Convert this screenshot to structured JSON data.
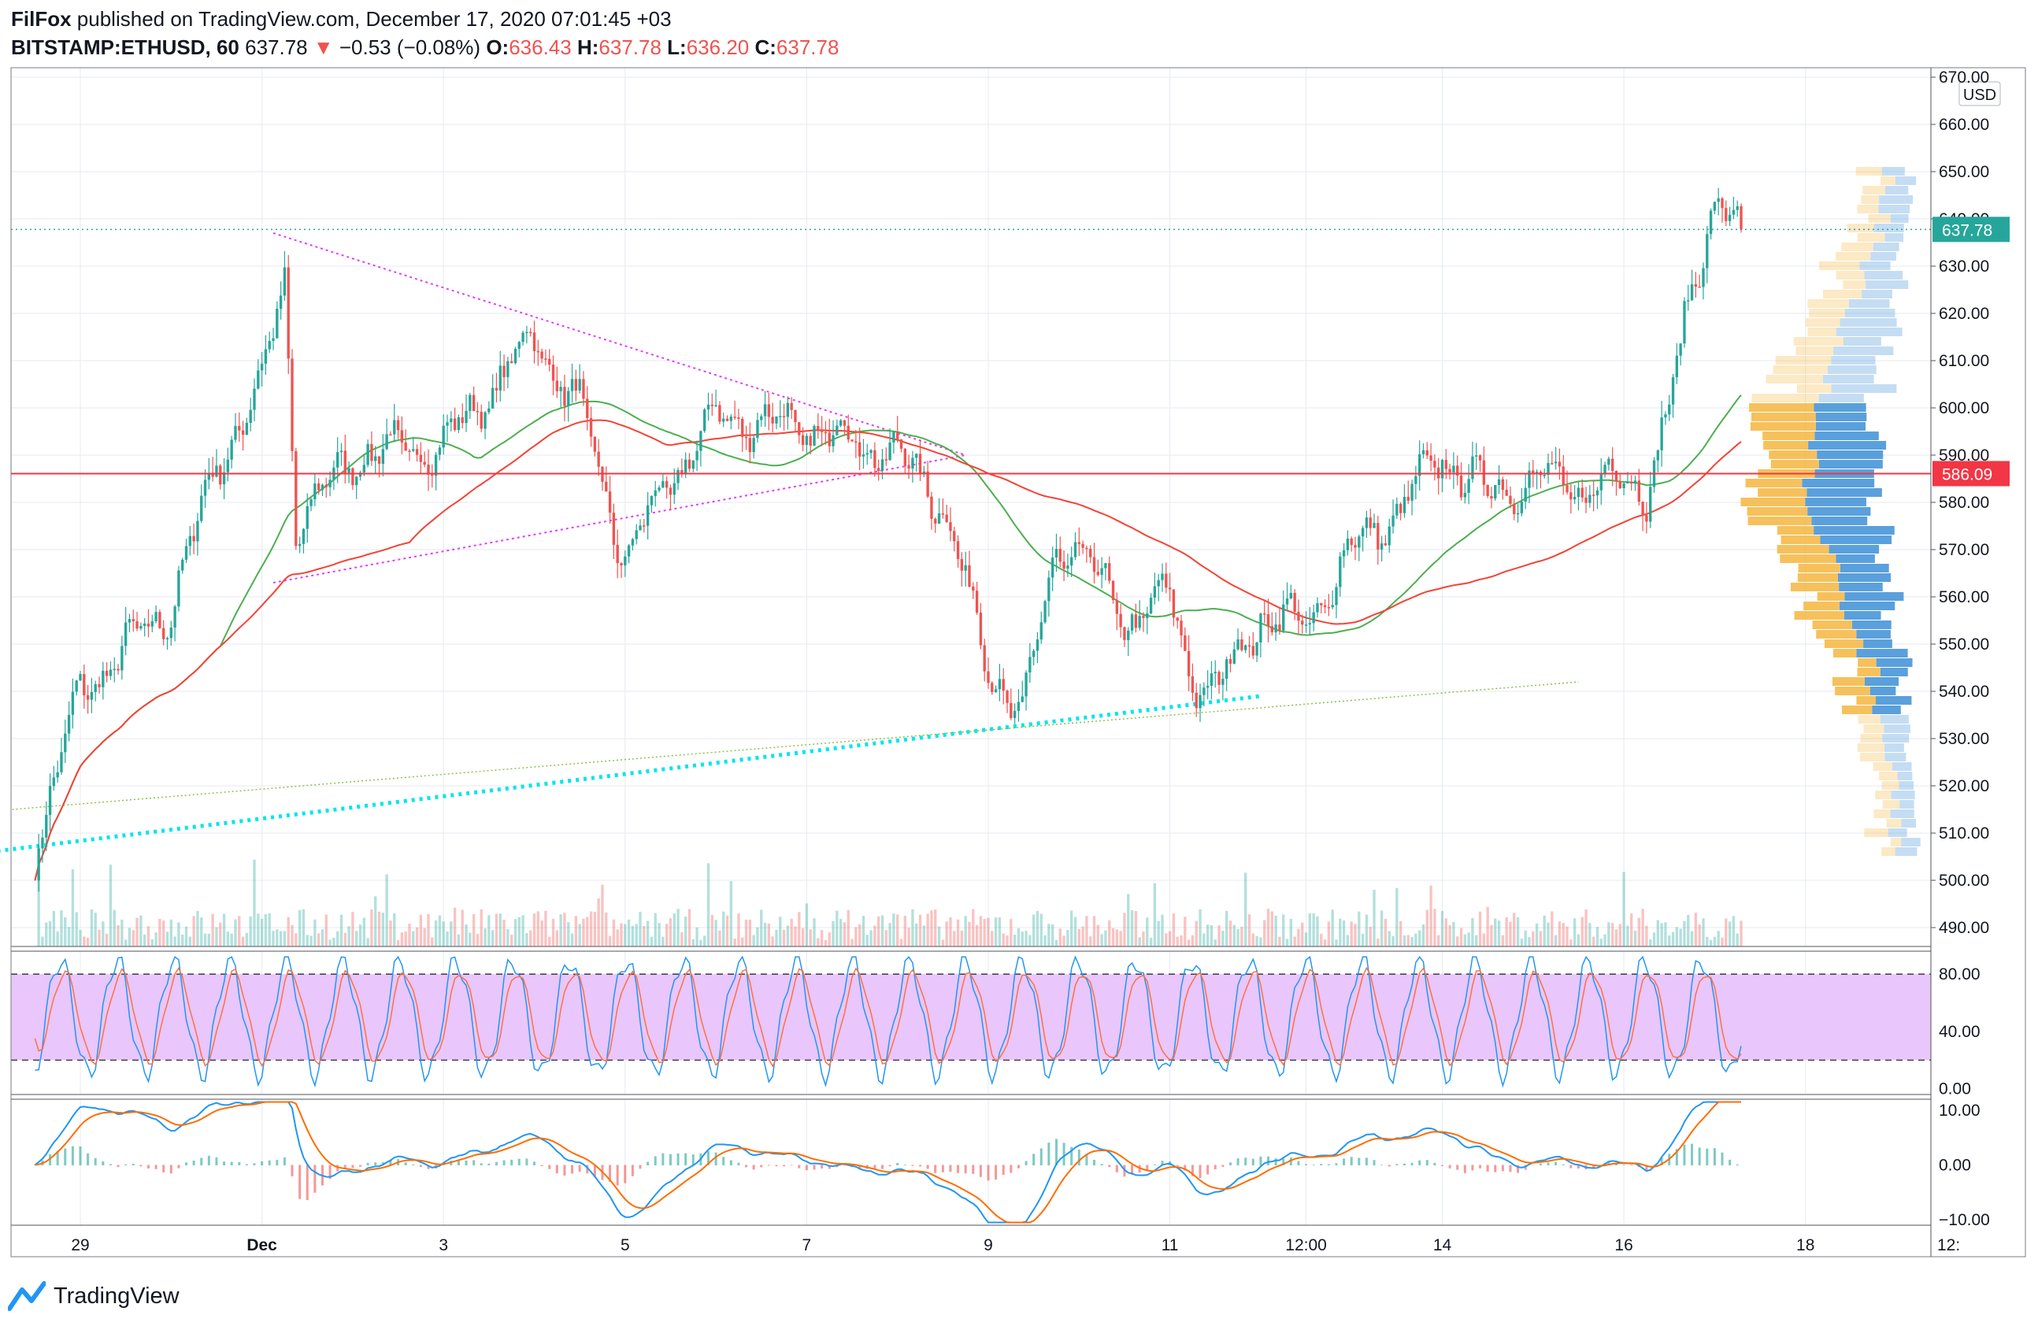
{
  "header": {
    "author": "FilFox",
    "published": "published on TradingView.com, December 17, 2020 07:01:45 +03",
    "symbol": "BITSTAMP:ETHUSD, 60",
    "last": "637.78",
    "change_arrow": "▼",
    "change": "−0.53 (−0.08%)",
    "open_label": "O:",
    "open": "636.43",
    "high_label": "H:",
    "high": "637.78",
    "low_label": "L:",
    "low": "636.20",
    "close_label": "C:",
    "close": "637.78"
  },
  "branding": {
    "logo_text": "TradingView",
    "logo_icon": "tradingview-logo-icon"
  },
  "price_axis": {
    "currency": "USD",
    "ticks": [
      "670.00",
      "660.00",
      "650.00",
      "640.00",
      "630.00",
      "620.00",
      "610.00",
      "600.00",
      "590.00",
      "580.00",
      "570.00",
      "560.00",
      "550.00",
      "540.00",
      "530.00",
      "520.00",
      "510.00",
      "500.00",
      "490.00"
    ],
    "last_price_label": "637.78",
    "horizontal_line_label": "586.09"
  },
  "time_axis": {
    "ticks": [
      "29",
      "Dec",
      "3",
      "5",
      "7",
      "9",
      "11",
      "12:00",
      "14",
      "16",
      "18",
      "12:"
    ]
  },
  "stoch_axis": {
    "ticks": [
      "80.00",
      "40.00",
      "0.00"
    ]
  },
  "macd_axis": {
    "ticks": [
      "10.00",
      "0.00",
      "−10.00"
    ]
  },
  "colors": {
    "up": "#26a69a",
    "down": "#ef5350",
    "ma_long": "#4caf50",
    "ma_short": "#f44336",
    "triangle": "#e040fb",
    "trend_cyan": "#00e5ee",
    "trend_green": "#8bc34a",
    "stoch_band": "#e9c6fb",
    "stoch_k": "#2196f3",
    "stoch_d": "#ff7043",
    "macd_line": "#2196f3",
    "signal_line": "#ff6d00",
    "vp_up": "#f5b640",
    "vp_down": "#3d8fd6",
    "hline": "#f23645"
  },
  "chart_data": [
    {
      "type": "candlestick",
      "symbol": "BITSTAMP:ETHUSD",
      "interval": "60",
      "ylim": [
        486,
        672
      ],
      "x_labels": [
        "29",
        "Dec",
        "3",
        "5",
        "7",
        "9",
        "11",
        "12:00",
        "14",
        "16",
        "18"
      ],
      "anchor_closes": [
        {
          "x": "Nov 28 12:00",
          "close": 507
        },
        {
          "x": "Nov 29",
          "close": 540
        },
        {
          "x": "Nov 30",
          "close": 558
        },
        {
          "x": "Nov 30 12:00",
          "close": 588
        },
        {
          "x": "Dec 1",
          "close": 605
        },
        {
          "x": "Dec 1 06:00",
          "close": 628
        },
        {
          "x": "Dec 1 09:00",
          "close": 575
        },
        {
          "x": "Dec 2",
          "close": 590
        },
        {
          "x": "Dec 3",
          "close": 592
        },
        {
          "x": "Dec 4",
          "close": 615
        },
        {
          "x": "Dec 4 12:00",
          "close": 600
        },
        {
          "x": "Dec 5",
          "close": 568
        },
        {
          "x": "Dec 5 12:00",
          "close": 585
        },
        {
          "x": "Dec 6",
          "close": 598
        },
        {
          "x": "Dec 7",
          "close": 596
        },
        {
          "x": "Dec 8",
          "close": 590
        },
        {
          "x": "Dec 8 12:00",
          "close": 580
        },
        {
          "x": "Dec 9",
          "close": 545
        },
        {
          "x": "Dec 9 09:00",
          "close": 535
        },
        {
          "x": "Dec 9 18:00",
          "close": 570
        },
        {
          "x": "Dec 10",
          "close": 570
        },
        {
          "x": "Dec 10 12:00",
          "close": 555
        },
        {
          "x": "Dec 11",
          "close": 560
        },
        {
          "x": "Dec 11 06:00",
          "close": 543
        },
        {
          "x": "Dec 11 12:00",
          "close": 540
        },
        {
          "x": "Dec 12",
          "close": 556
        },
        {
          "x": "Dec 12 12:00",
          "close": 554
        },
        {
          "x": "Dec 13",
          "close": 570
        },
        {
          "x": "Dec 13 12:00",
          "close": 578
        },
        {
          "x": "Dec 14",
          "close": 590
        },
        {
          "x": "Dec 14 12:00",
          "close": 582
        },
        {
          "x": "Dec 15",
          "close": 585
        },
        {
          "x": "Dec 15 12:00",
          "close": 583
        },
        {
          "x": "Dec 16",
          "close": 585
        },
        {
          "x": "Dec 16 06:00",
          "close": 583
        },
        {
          "x": "Dec 16 12:00",
          "close": 600
        },
        {
          "x": "Dec 16 18:00",
          "close": 625
        },
        {
          "x": "Dec 17",
          "close": 645
        },
        {
          "x": "Dec 17 07:00",
          "close": 637.78
        }
      ],
      "last_price": 637.78,
      "horizontal_level": 586.09,
      "ma_series": [
        "ma_long",
        "ma_short"
      ],
      "drawings": {
        "triangle_upper": {
          "from": {
            "x": "Dec 1 03:00",
            "y": 637
          },
          "to": {
            "x": "Dec 8 18:00",
            "y": 590
          }
        },
        "triangle_lower": {
          "from": {
            "x": "Dec 1 03:00",
            "y": 563
          },
          "to": {
            "x": "Dec 8 18:00",
            "y": 590
          }
        },
        "trend_cyan": {
          "from": {
            "x": "Nov 28",
            "y": 506
          },
          "to": {
            "x": "Dec 12",
            "y": 539
          }
        },
        "trend_green": {
          "from": {
            "x": "Nov 28 06:00",
            "y": 515
          },
          "to": {
            "x": "Dec 15 12:00",
            "y": 542
          }
        }
      }
    },
    {
      "type": "area",
      "name": "Stochastic RSI",
      "ylim": [
        -4,
        96
      ],
      "band": [
        20,
        80
      ],
      "ticks": [
        80,
        40,
        0
      ]
    },
    {
      "type": "line",
      "name": "MACD",
      "ylim": [
        -11,
        12
      ],
      "ticks": [
        10,
        0,
        -10
      ]
    }
  ]
}
